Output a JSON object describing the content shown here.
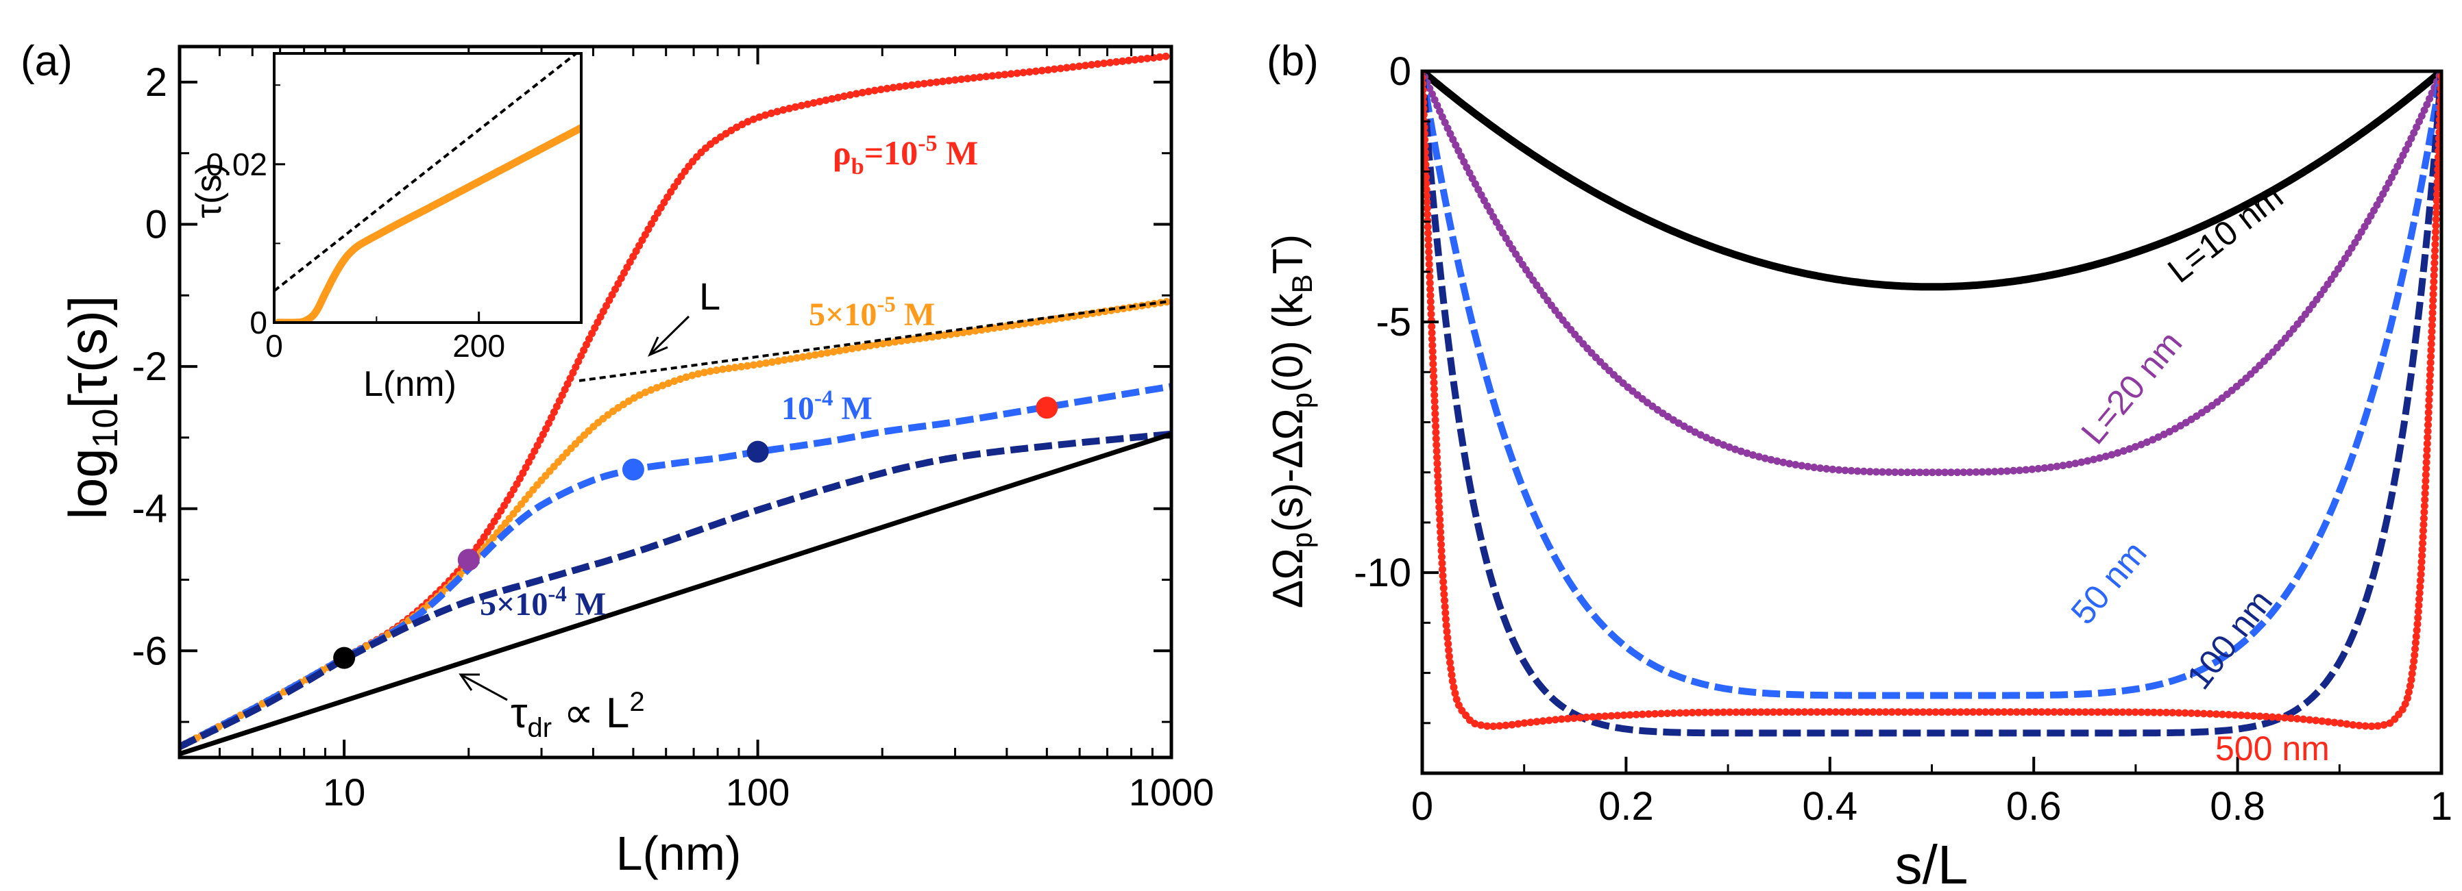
{
  "chart_data": [
    {
      "panel": "(a)",
      "type": "line",
      "xscale": "log",
      "xlabel": "L(nm)",
      "ylabel": "log10[τ(s)]",
      "xlim": [
        4,
        1000
      ],
      "ylim": [
        -7.5,
        2.5
      ],
      "xticks": [
        10,
        100,
        1000
      ],
      "xtick_labels": [
        "10",
        "100",
        "1000"
      ],
      "yticks": [
        -6,
        -4,
        -2,
        0,
        2
      ],
      "ytick_labels": [
        "-6",
        "-4",
        "-2",
        "0",
        "2"
      ],
      "series": [
        {
          "name": "ρb=10^-5 M",
          "label": "ρb=10-5 M",
          "color": "#ff2a1a",
          "style": "dotted",
          "x": [
            4,
            6,
            8,
            10,
            13,
            16,
            20,
            25,
            30,
            35,
            40,
            50,
            60,
            70,
            80,
            100,
            150,
            200,
            300,
            500,
            700,
            1000
          ],
          "y": [
            -7.35,
            -6.82,
            -6.42,
            -6.1,
            -5.72,
            -5.3,
            -4.7,
            -3.85,
            -3.0,
            -2.2,
            -1.5,
            -0.45,
            0.35,
            0.9,
            1.2,
            1.5,
            1.76,
            1.9,
            2.03,
            2.17,
            2.27,
            2.37
          ]
        },
        {
          "name": "5×10^-5 M",
          "label": "5×10-5 M",
          "color": "#ff9a1a",
          "style": "dotted",
          "x": [
            4,
            6,
            8,
            10,
            13,
            16,
            20,
            25,
            30,
            40,
            50,
            60,
            70,
            80,
            100,
            150,
            200,
            300,
            500,
            700,
            1000
          ],
          "y": [
            -7.35,
            -6.82,
            -6.42,
            -6.1,
            -5.74,
            -5.35,
            -4.8,
            -4.15,
            -3.6,
            -2.85,
            -2.45,
            -2.25,
            -2.12,
            -2.05,
            -1.97,
            -1.8,
            -1.68,
            -1.54,
            -1.35,
            -1.22,
            -1.08
          ]
        },
        {
          "name": "10^-4 M",
          "label": "10-4 M",
          "color": "#2a66ff",
          "style": "dashed",
          "x": [
            4,
            6,
            8,
            10,
            13,
            16,
            20,
            25,
            30,
            40,
            50,
            60,
            70,
            80,
            100,
            150,
            200,
            300,
            500,
            700,
            1000
          ],
          "y": [
            -7.35,
            -6.82,
            -6.42,
            -6.1,
            -5.75,
            -5.38,
            -4.85,
            -4.3,
            -3.95,
            -3.6,
            -3.45,
            -3.38,
            -3.33,
            -3.29,
            -3.2,
            -3.05,
            -2.92,
            -2.78,
            -2.57,
            -2.43,
            -2.28
          ]
        },
        {
          "name": "5×10^-4 M",
          "label": "5×10-4 M",
          "color": "#14288a",
          "style": "dashed",
          "x": [
            4,
            6,
            8,
            10,
            15,
            20,
            30,
            50,
            100,
            200,
            300,
            500,
            1000
          ],
          "y": [
            -7.35,
            -6.85,
            -6.45,
            -6.12,
            -5.6,
            -5.3,
            -5.0,
            -4.62,
            -4.02,
            -3.5,
            -3.28,
            -3.12,
            -2.95
          ]
        },
        {
          "name": "τdr ∝ L²",
          "label": "τdr ∝ L²",
          "color": "#000000",
          "style": "solid",
          "x": [
            4,
            1000
          ],
          "y": [
            -7.45,
            -2.95
          ]
        },
        {
          "name": "L",
          "label": "L",
          "color": "#000000",
          "style": "short-dash",
          "x": [
            37,
            1000
          ],
          "y": [
            -2.2,
            -1.08
          ]
        }
      ],
      "markers": [
        {
          "x": 10,
          "y": -6.1,
          "color": "#000000"
        },
        {
          "x": 20,
          "y": -4.72,
          "color": "#8e3aa0"
        },
        {
          "x": 50,
          "y": -3.45,
          "color": "#2a66ff"
        },
        {
          "x": 100,
          "y": -3.2,
          "color": "#14288a"
        },
        {
          "x": 500,
          "y": -2.58,
          "color": "#ff2a1a"
        }
      ],
      "annotations": [
        {
          "text": "L",
          "points_to": "dashed asymptote"
        },
        {
          "text": "τdr ∝ L²",
          "points_to": "black solid line"
        }
      ],
      "inset": {
        "type": "line",
        "xlabel": "L(nm)",
        "ylabel": "τ(s)",
        "xlim": [
          0,
          300
        ],
        "ylim": [
          0,
          0.034
        ],
        "xticks": [
          0,
          200
        ],
        "xtick_labels": [
          "0",
          "200"
        ],
        "yticks": [
          0,
          0.02
        ],
        "ytick_labels": [
          "0",
          "0.02"
        ],
        "series": [
          {
            "name": "τ(s)",
            "color": "#ff9a1a",
            "style": "solid-thick",
            "x": [
              4,
              20,
              30,
              40,
              50,
              60,
              70,
              80,
              90,
              100,
              120,
              150,
              200,
              250,
              300
            ],
            "y": [
              0.0,
              0.0,
              0.0002,
              0.0012,
              0.0037,
              0.0062,
              0.0082,
              0.0095,
              0.0103,
              0.011,
              0.0124,
              0.0144,
              0.0178,
              0.0212,
              0.0246
            ]
          },
          {
            "name": "linear fit",
            "color": "#000000",
            "style": "dotted",
            "x": [
              0,
              300
            ],
            "y": [
              0.004,
              0.0345
            ]
          }
        ]
      }
    },
    {
      "panel": "(b)",
      "type": "line",
      "xlabel": "s/L",
      "ylabel": "ΔΩp(s)-ΔΩp(0)  (kBT)",
      "xlim": [
        0,
        1
      ],
      "ylim": [
        -14,
        0
      ],
      "xticks": [
        0,
        0.2,
        0.4,
        0.6,
        0.8,
        1
      ],
      "xtick_labels": [
        "0",
        "0.2",
        "0.4",
        "0.6",
        "0.8",
        "1"
      ],
      "yticks": [
        0,
        -5,
        -10
      ],
      "ytick_labels": [
        "0",
        "-5",
        "-10"
      ],
      "series": [
        {
          "name": "L=10 nm",
          "label": "L=10 nm",
          "color": "#000000",
          "style": "solid-thick",
          "depth": 4.3,
          "shape_power": 2
        },
        {
          "name": "L=20 nm",
          "label": "L=20 nm",
          "color": "#8e3aa0",
          "style": "dotted",
          "depth": 8.0,
          "shape_power": 3
        },
        {
          "name": "50 nm",
          "label": "50 nm",
          "color": "#2a66ff",
          "style": "dashed",
          "depth": 12.45,
          "shape_power": 5
        },
        {
          "name": "100 nm",
          "label": "100 nm",
          "color": "#14288a",
          "style": "dashed",
          "depth": 13.2,
          "shape_power": 10
        },
        {
          "name": "500 nm",
          "label": "500 nm",
          "color": "#ff2a1a",
          "style": "dotted",
          "x": [
            0,
            0.01,
            0.02,
            0.03,
            0.045,
            0.06,
            0.08,
            0.1,
            0.15,
            0.25,
            0.35,
            0.5,
            0.65,
            0.75,
            0.85,
            0.9,
            0.92,
            0.94,
            0.955,
            0.97,
            0.98,
            0.99,
            1
          ],
          "y": [
            0,
            -5.5,
            -10.0,
            -12.2,
            -12.9,
            -13.05,
            -13.05,
            -13.0,
            -12.9,
            -12.8,
            -12.78,
            -12.78,
            -12.78,
            -12.8,
            -12.9,
            -13.0,
            -13.05,
            -13.05,
            -12.9,
            -12.2,
            -10.0,
            -5.5,
            0
          ]
        }
      ]
    }
  ]
}
